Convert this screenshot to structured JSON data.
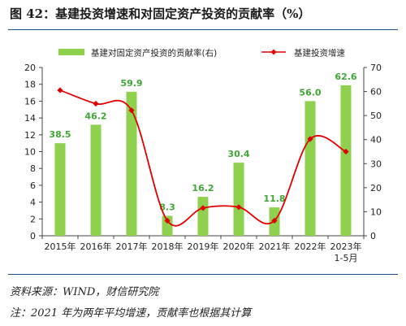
{
  "header": {
    "title": "图 42：基建投资增速和对固定资产投资的贡献率（%）"
  },
  "footer": {
    "source": "资料来源：WIND，财信研究院",
    "note": "注：2021 年为两年平均增速，贡献率也根据其计算"
  },
  "colors": {
    "bar": "#8fd14f",
    "line": "#e00000",
    "bar_label": "#3fa535",
    "rule": "#1e4e8c"
  },
  "chart_data": {
    "type": "bar",
    "categories": [
      "2015年",
      "2016年",
      "2017年",
      "2018年",
      "2019年",
      "2020年",
      "2021年",
      "2022年",
      "2023年\n1-5月"
    ],
    "series": [
      {
        "name": "基建对固定资产投资的贡献率(右)",
        "type": "bar",
        "axis": "right",
        "values": [
          38.5,
          46.2,
          59.9,
          8.3,
          16.2,
          30.4,
          11.8,
          56.0,
          62.6
        ],
        "data_labels": [
          "38.5",
          "46.2",
          "59.9",
          "8.3",
          "16.2",
          "30.4",
          "11.8",
          "56.0",
          "62.6"
        ]
      },
      {
        "name": "基建投资增速",
        "type": "line",
        "axis": "left",
        "smooth": true,
        "values": [
          17.3,
          15.7,
          14.9,
          1.8,
          3.3,
          3.4,
          1.8,
          11.5,
          10.0
        ]
      }
    ],
    "y_left": {
      "min": 0,
      "max": 20,
      "ticks": [
        "0",
        "2",
        "4",
        "6",
        "8",
        "10",
        "12",
        "14",
        "16",
        "18",
        "20"
      ]
    },
    "y_right": {
      "min": 0,
      "max": 70,
      "ticks": [
        "0",
        "10",
        "20",
        "30",
        "40",
        "50",
        "60",
        "70"
      ]
    },
    "legend": {
      "position": "top"
    },
    "grid": false
  }
}
